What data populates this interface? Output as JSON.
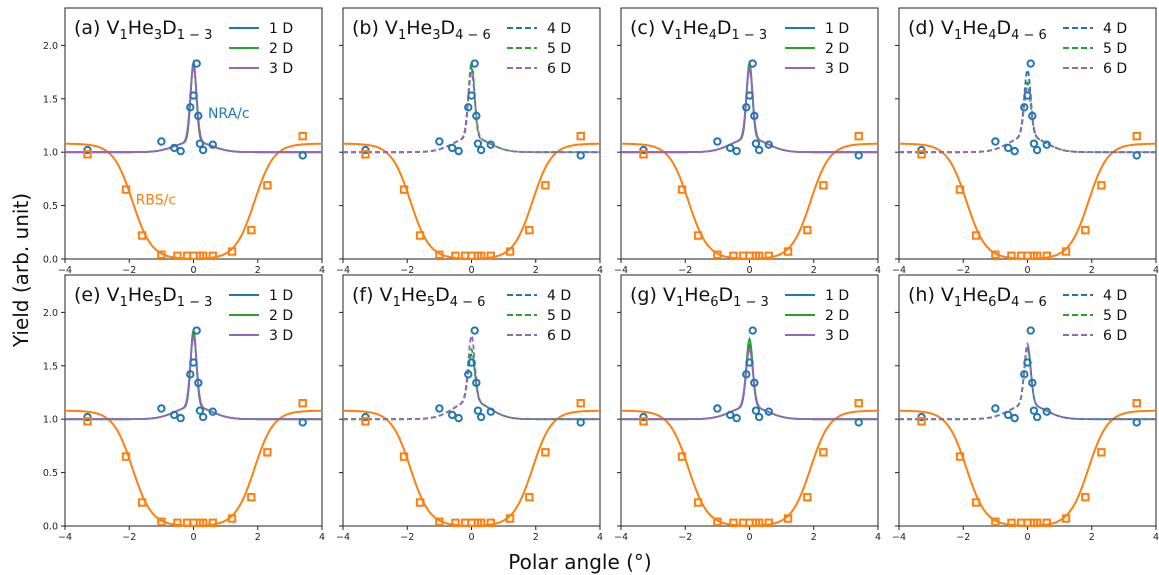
{
  "colors": {
    "nra": "#1f77b4",
    "rbs": "#ff7f0e",
    "d1": "#1f77b4",
    "d2": "#2ca02c",
    "d3": "#9467bd"
  },
  "labels": {
    "ylabel": "Yield (arb. unit)",
    "xlabel": "Polar angle (°)",
    "nra": "NRA/c",
    "rbs": "RBS/c"
  },
  "chart_data": {
    "type": "line",
    "layout": "2x4 grid, shared axes",
    "xlim": [
      -4,
      4
    ],
    "ylim": [
      0,
      2.35
    ],
    "xticks": [
      -4,
      -2,
      0,
      2,
      4
    ],
    "yticks": [
      0.0,
      0.5,
      1.0,
      1.5,
      2.0
    ],
    "ytick_labels": [
      "0.0",
      "0.5",
      "1.0",
      "1.5",
      "2.0"
    ],
    "legend_position": "top-right",
    "grid": false,
    "experimental": {
      "nra_c": {
        "x": [
          -3.3,
          -1.0,
          -0.6,
          -0.4,
          -0.1,
          0.0,
          0.1,
          0.15,
          0.2,
          0.3,
          0.6,
          3.4
        ],
        "y": [
          1.02,
          1.1,
          1.04,
          1.01,
          1.42,
          1.53,
          1.83,
          1.34,
          1.08,
          1.02,
          1.07,
          0.97
        ]
      },
      "rbs_c": {
        "x": [
          -3.3,
          -2.1,
          -1.6,
          -1.0,
          -0.5,
          -0.2,
          0.0,
          0.2,
          0.3,
          0.6,
          1.2,
          1.8,
          2.3,
          3.4
        ],
        "y": [
          0.98,
          0.65,
          0.22,
          0.04,
          0.03,
          0.03,
          0.03,
          0.03,
          0.03,
          0.03,
          0.07,
          0.27,
          0.69,
          1.15
        ]
      }
    },
    "panels": [
      {
        "id": "a",
        "label_prefix": "(a) V",
        "sub1": "1",
        "mid": "He",
        "sub2": "3",
        "end": "D",
        "sub3": "1 − 3",
        "series": [
          {
            "name": "1 D",
            "style": "solid",
            "peak": 1.78,
            "width": 0.09,
            "shoulder": 0.1
          },
          {
            "name": "2 D",
            "style": "solid",
            "peak": 1.76,
            "width": 0.09,
            "shoulder": 0.1
          },
          {
            "name": "3 D",
            "style": "solid",
            "peak": 1.74,
            "width": 0.1,
            "shoulder": 0.1
          }
        ]
      },
      {
        "id": "b",
        "label_prefix": "(b) V",
        "sub1": "1",
        "mid": "He",
        "sub2": "3",
        "end": "D",
        "sub3": "4 − 6",
        "series": [
          {
            "name": "4 D",
            "style": "dashed",
            "peak": 1.7,
            "width": 0.1,
            "shoulder": 0.14
          },
          {
            "name": "5 D",
            "style": "dashed",
            "peak": 1.76,
            "width": 0.09,
            "shoulder": 0.14
          },
          {
            "name": "6 D",
            "style": "dashed",
            "peak": 1.66,
            "width": 0.1,
            "shoulder": 0.14
          }
        ]
      },
      {
        "id": "c",
        "label_prefix": "(c) V",
        "sub1": "1",
        "mid": "He",
        "sub2": "4",
        "end": "D",
        "sub3": "1 − 3",
        "series": [
          {
            "name": "1 D",
            "style": "solid",
            "peak": 1.74,
            "width": 0.09,
            "shoulder": 0.13
          },
          {
            "name": "2 D",
            "style": "solid",
            "peak": 1.76,
            "width": 0.09,
            "shoulder": 0.13
          },
          {
            "name": "3 D",
            "style": "solid",
            "peak": 1.7,
            "width": 0.1,
            "shoulder": 0.13
          }
        ]
      },
      {
        "id": "d",
        "label_prefix": "(d) V",
        "sub1": "1",
        "mid": "He",
        "sub2": "4",
        "end": "D",
        "sub3": "4 − 6",
        "series": [
          {
            "name": "4 D",
            "style": "dashed",
            "peak": 1.68,
            "width": 0.1,
            "shoulder": 0.15
          },
          {
            "name": "5 D",
            "style": "dashed",
            "peak": 1.56,
            "width": 0.1,
            "shoulder": 0.15
          },
          {
            "name": "6 D",
            "style": "dashed",
            "peak": 1.52,
            "width": 0.11,
            "shoulder": 0.15
          }
        ]
      },
      {
        "id": "e",
        "label_prefix": "(e) V",
        "sub1": "1",
        "mid": "He",
        "sub2": "5",
        "end": "D",
        "sub3": "1 − 3",
        "series": [
          {
            "name": "1 D",
            "style": "solid",
            "peak": 1.76,
            "width": 0.09,
            "shoulder": 0.12
          },
          {
            "name": "2 D",
            "style": "solid",
            "peak": 1.74,
            "width": 0.09,
            "shoulder": 0.12
          },
          {
            "name": "3 D",
            "style": "solid",
            "peak": 1.7,
            "width": 0.1,
            "shoulder": 0.12
          }
        ]
      },
      {
        "id": "f",
        "label_prefix": "(f) V",
        "sub1": "1",
        "mid": "He",
        "sub2": "5",
        "end": "D",
        "sub3": "4 − 6",
        "series": [
          {
            "name": "4 D",
            "style": "dashed",
            "peak": 1.5,
            "width": 0.11,
            "shoulder": 0.17
          },
          {
            "name": "5 D",
            "style": "dashed",
            "peak": 1.55,
            "width": 0.1,
            "shoulder": 0.17
          },
          {
            "name": "6 D",
            "style": "dashed",
            "peak": 1.68,
            "width": 0.1,
            "shoulder": 0.17
          }
        ]
      },
      {
        "id": "g",
        "label_prefix": "(g) V",
        "sub1": "1",
        "mid": "He",
        "sub2": "6",
        "end": "D",
        "sub3": "1 − 3",
        "series": [
          {
            "name": "1 D",
            "style": "solid",
            "peak": 1.62,
            "width": 0.1,
            "shoulder": 0.12
          },
          {
            "name": "2 D",
            "style": "solid",
            "peak": 1.68,
            "width": 0.1,
            "shoulder": 0.12
          },
          {
            "name": "3 D",
            "style": "solid",
            "peak": 1.58,
            "width": 0.11,
            "shoulder": 0.12
          }
        ]
      },
      {
        "id": "h",
        "label_prefix": "(h) V",
        "sub1": "1",
        "mid": "He",
        "sub2": "6",
        "end": "D",
        "sub3": "4 − 6",
        "series": [
          {
            "name": "4 D",
            "style": "dashed",
            "peak": 1.6,
            "width": 0.1,
            "shoulder": 0.14
          },
          {
            "name": "5 D",
            "style": "dashed",
            "peak": 1.58,
            "width": 0.1,
            "shoulder": 0.14
          },
          {
            "name": "6 D",
            "style": "dashed",
            "peak": 1.62,
            "width": 0.1,
            "shoulder": 0.14
          }
        ]
      }
    ],
    "rbs_curve_model": {
      "base": 1.08,
      "min": 0.0,
      "center": 0.0,
      "half_width": 1.9,
      "steepness": 0.3
    }
  }
}
